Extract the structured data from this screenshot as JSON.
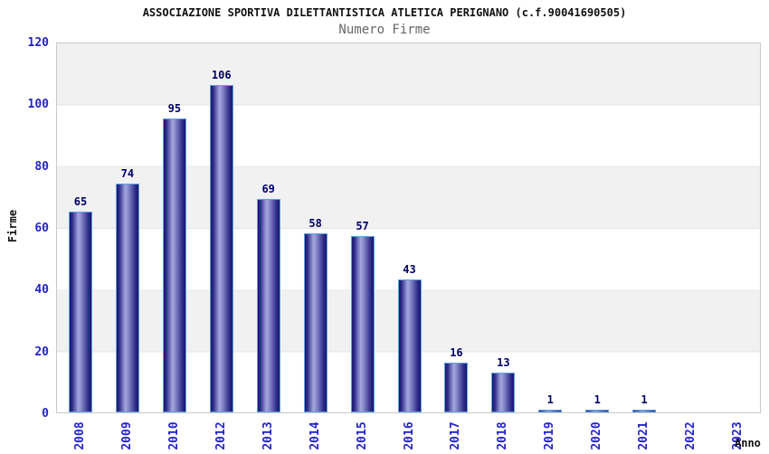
{
  "chart_data": {
    "type": "bar",
    "title": "ASSOCIAZIONE SPORTIVA DILETTANTISTICA ATLETICA PERIGNANO (c.f.90041690505)",
    "subtitle": "Numero Firme",
    "xlabel": "Anno",
    "ylabel": "Firme",
    "categories": [
      "2008",
      "2009",
      "2010",
      "2012",
      "2013",
      "2014",
      "2015",
      "2016",
      "2017",
      "2018",
      "2019",
      "2020",
      "2021",
      "2022",
      "2023"
    ],
    "values": [
      65,
      74,
      95,
      106,
      69,
      58,
      57,
      43,
      16,
      13,
      1,
      1,
      1,
      null,
      null
    ],
    "ylim": [
      0,
      120
    ],
    "yticks": [
      0,
      20,
      40,
      60,
      80,
      100,
      120
    ],
    "grid": "alternating-horizontal-bands",
    "legend_position": "none",
    "colors": {
      "bar_fill_dark": "#17176e",
      "bar_fill_light": "#a6a6de",
      "bar_border": "#5fa2e2",
      "tick_label": "#2323c8",
      "value_label": "#000066",
      "band_gray": "#f1f1f1",
      "plot_border": "#c9c9c9",
      "title": "#111111",
      "subtitle": "#666666"
    }
  }
}
